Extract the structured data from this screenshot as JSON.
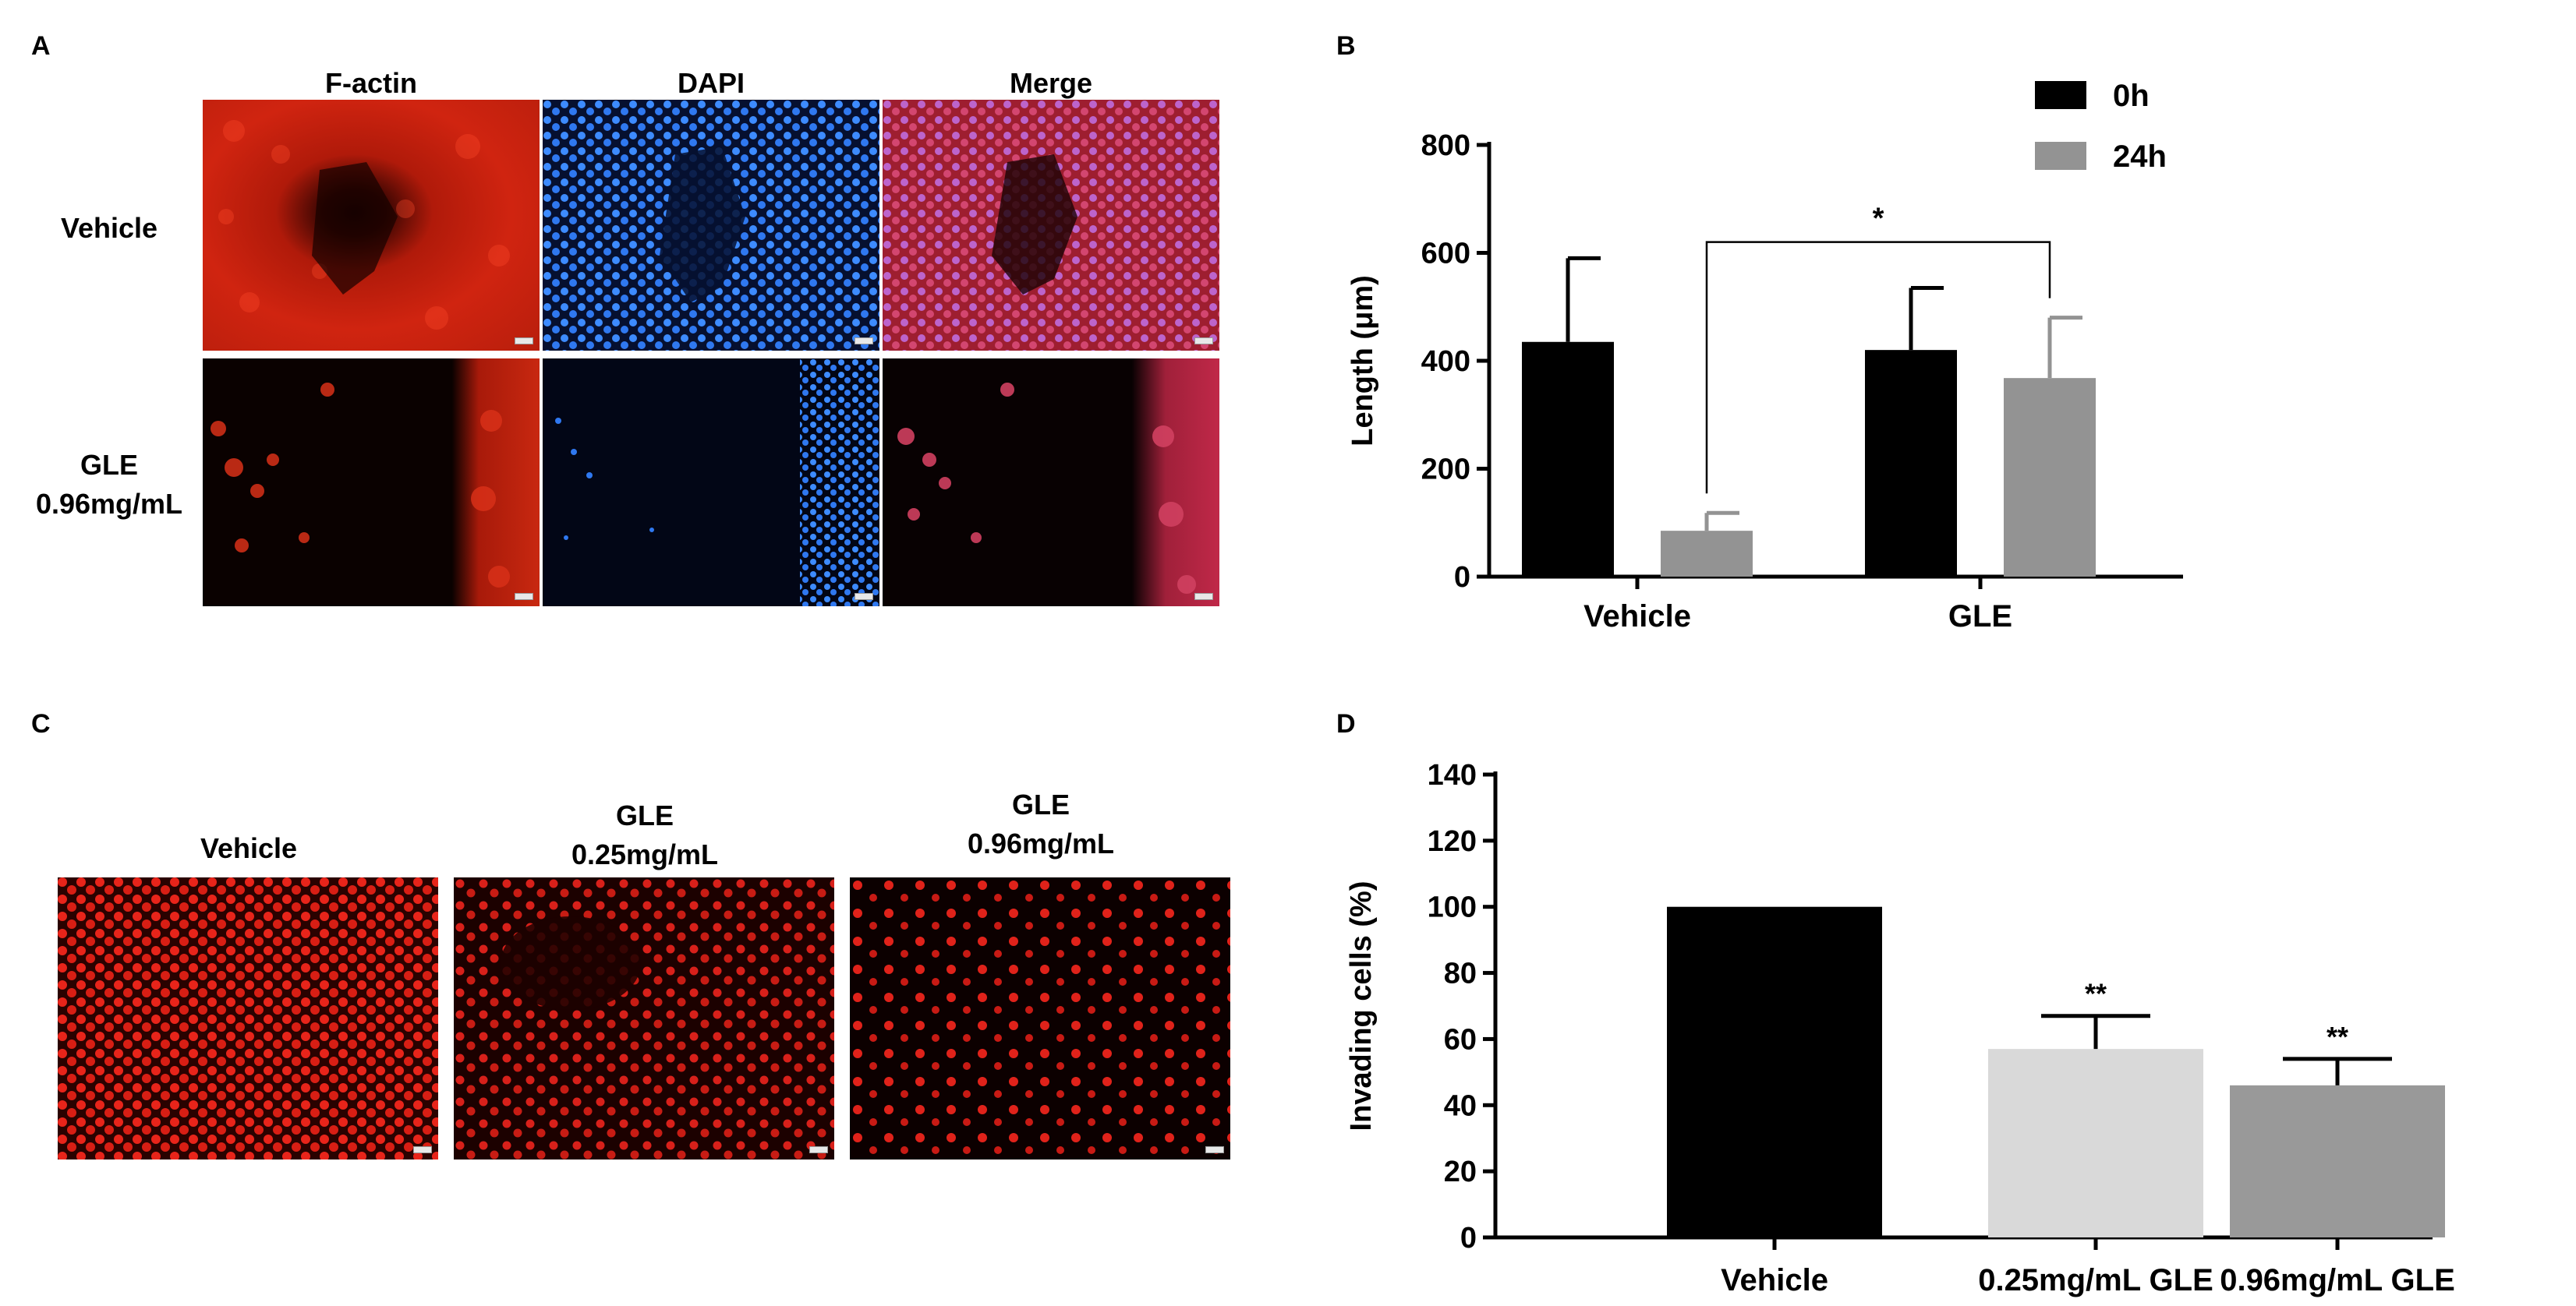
{
  "panels": {
    "a": "A",
    "b": "B",
    "c": "C",
    "d": "D"
  },
  "panel_a": {
    "columns": [
      "F-actin",
      "DAPI",
      "Merge"
    ],
    "rows": [
      {
        "label_lines": [
          "Vehicle"
        ]
      },
      {
        "label_lines": [
          "GLE",
          "0.96mg/mL"
        ]
      }
    ]
  },
  "panel_c": {
    "columns": [
      {
        "label_lines": [
          "Vehicle"
        ]
      },
      {
        "label_lines": [
          "GLE",
          "0.25mg/mL"
        ]
      },
      {
        "label_lines": [
          "GLE",
          "0.96mg/mL"
        ]
      }
    ]
  },
  "colors": {
    "black_bar": "#000000",
    "gray_bar": "#939393",
    "light_gray_bar": "#d9d9d9",
    "mid_gray_bar": "#999999",
    "factin_red": "#c81a0c",
    "dapi_blue": "#2a6cff"
  },
  "chart_data": [
    {
      "type": "bar",
      "panel": "B",
      "categories": [
        "Vehicle",
        "GLE"
      ],
      "series": [
        {
          "name": "0h",
          "values": [
            435,
            420
          ],
          "errors": [
            155,
            115
          ],
          "color": "#000000"
        },
        {
          "name": "24h",
          "values": [
            85,
            368
          ],
          "errors": [
            33,
            112
          ],
          "color": "#939393"
        }
      ],
      "ylabel": "Length (μm)",
      "ylim": [
        0,
        800
      ],
      "yticks": [
        0,
        200,
        400,
        600,
        800
      ],
      "legend_position": "top-right",
      "significance": [
        {
          "from": "Vehicle 24h",
          "to": "GLE 24h",
          "label": "*",
          "bracket_y": 620
        }
      ]
    },
    {
      "type": "bar",
      "panel": "D",
      "categories": [
        "Vehicle",
        "0.25mg/mL GLE",
        "0.96mg/mL GLE"
      ],
      "values": [
        100,
        57,
        46
      ],
      "errors": [
        0,
        10,
        8
      ],
      "colors": [
        "#000000",
        "#d9d9d9",
        "#999999"
      ],
      "annotations": [
        "",
        "**",
        "**"
      ],
      "ylabel": "Invading cells (%)",
      "ylim": [
        0,
        140
      ],
      "yticks": [
        0,
        20,
        40,
        60,
        80,
        100,
        120,
        140
      ]
    }
  ]
}
